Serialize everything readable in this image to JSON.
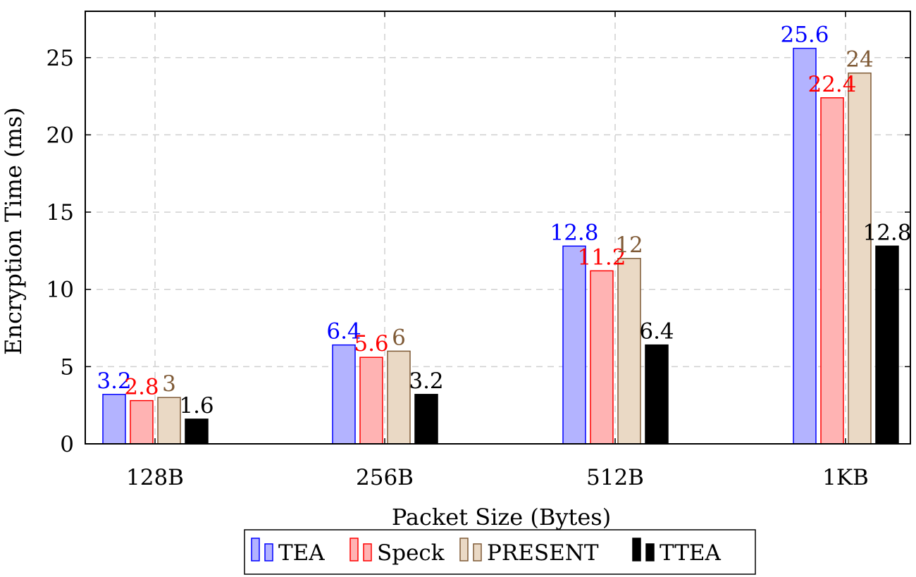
{
  "chart_data": {
    "type": "bar",
    "categories": [
      "128B",
      "256B",
      "512B",
      "1KB"
    ],
    "series": [
      {
        "name": "TEA",
        "values": [
          3.2,
          6.4,
          12.8,
          25.6
        ],
        "fill": "#b3b3ff",
        "stroke": "#0000ff",
        "label_color": "#0000ff"
      },
      {
        "name": "Speck",
        "values": [
          2.8,
          5.6,
          11.2,
          22.4
        ],
        "fill": "#ffb3b3",
        "stroke": "#ff0000",
        "label_color": "#ff0000"
      },
      {
        "name": "PRESENT",
        "values": [
          3,
          6,
          12,
          24
        ],
        "fill": "#ead9c5",
        "stroke": "#7f5a36",
        "label_color": "#7f5a36"
      },
      {
        "name": "TTEA",
        "values": [
          1.6,
          3.2,
          6.4,
          12.8
        ],
        "fill": "#000000",
        "stroke": "#000000",
        "label_color": "#000000"
      }
    ],
    "data_labels": [
      [
        "3.2",
        "6.4",
        "12.8",
        "25.6"
      ],
      [
        "2.8",
        "5.6",
        "11.2",
        "22.4"
      ],
      [
        "3",
        "6",
        "12",
        "24"
      ],
      [
        "1.6",
        "3.2",
        "6.4",
        "12.8"
      ]
    ],
    "title": "",
    "xlabel": "Packet Size (Bytes)",
    "ylabel": "Encryption Time (ms)",
    "ylim": [
      0,
      28
    ],
    "yticks": [
      0,
      5,
      10,
      15,
      20,
      25
    ],
    "grid": true,
    "legend_position": "bottom-center"
  }
}
